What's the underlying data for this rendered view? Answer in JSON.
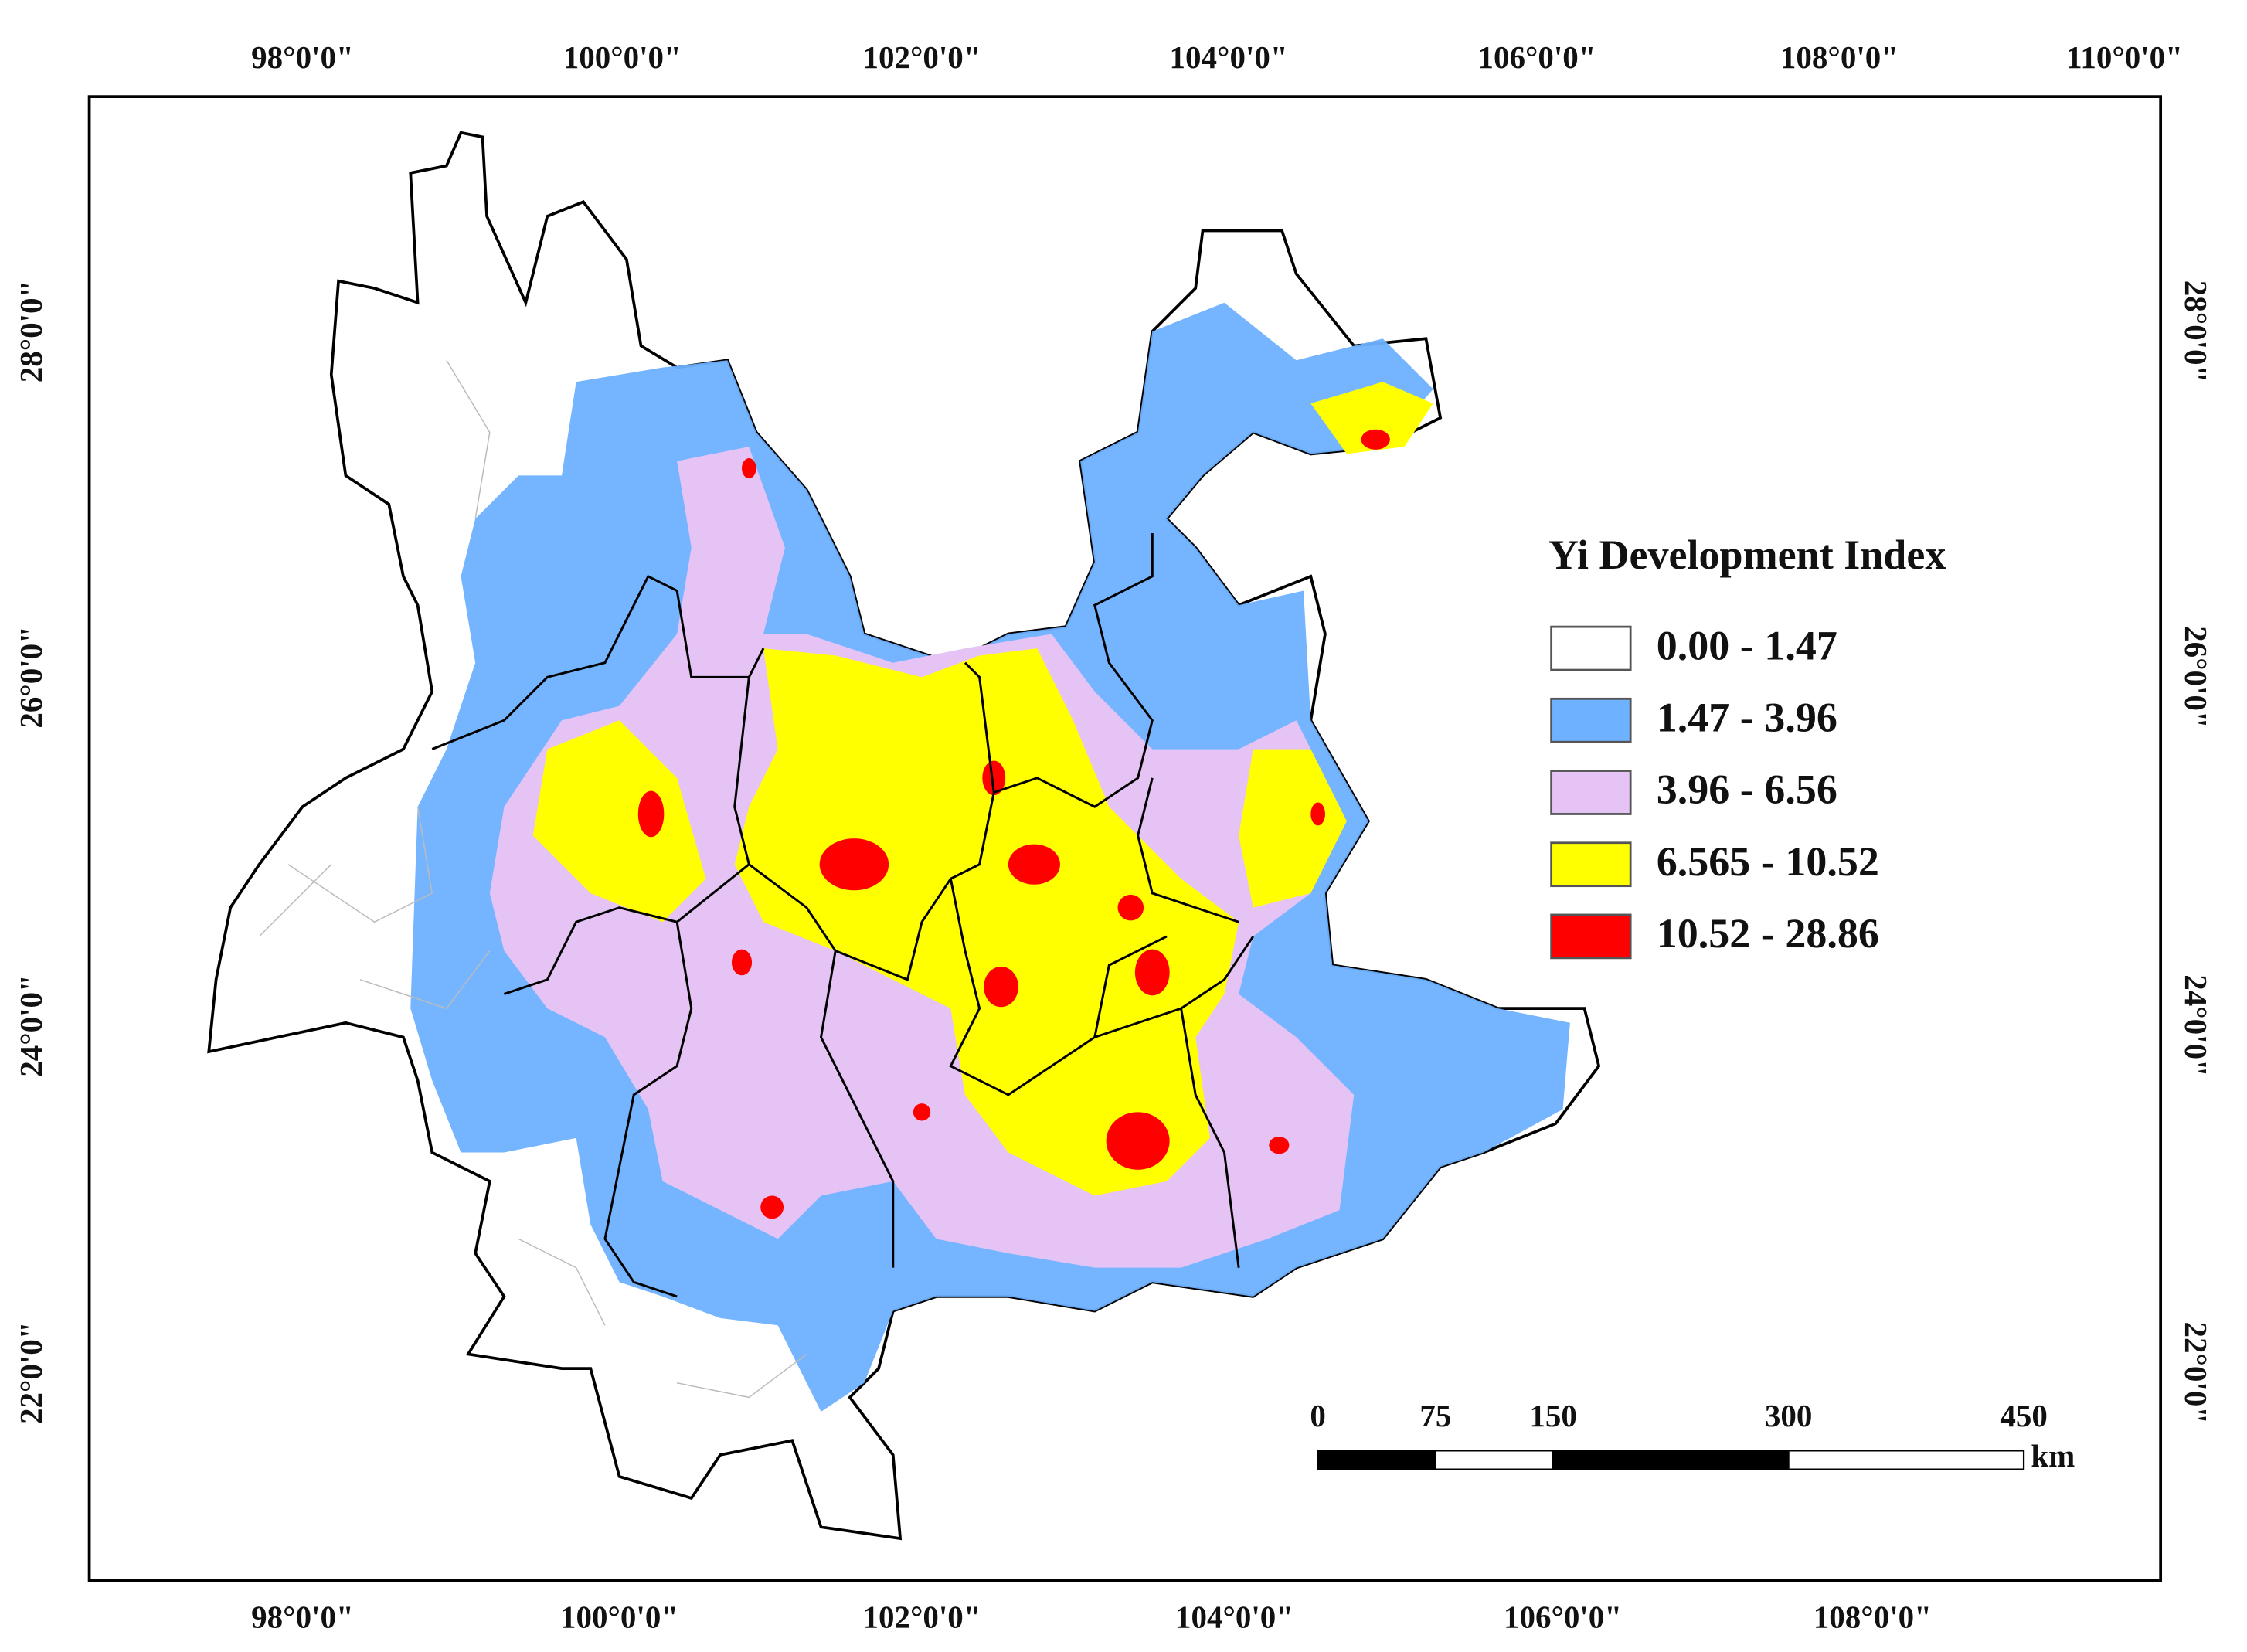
{
  "map": {
    "top_labels": [
      "98°0'0\"",
      "100°0'0\"",
      "102°0'0\"",
      "104°0'0\"",
      "106°0'0\"",
      "108°0'0\"",
      "110°0'0\""
    ],
    "bottom_labels": [
      "98°0'0\"",
      "100°0'0\"",
      "102°0'0\"",
      "104°0'0\"",
      "106°0'0\"",
      "108°0'0\""
    ],
    "left_labels": [
      "28°0'0\"",
      "26°0'0\"",
      "24°0'0\"",
      "22°0'0\""
    ],
    "right_labels": [
      "28°0'0\"",
      "26°0'0\"",
      "24°0'0\"",
      "22°0'0\""
    ]
  },
  "legend": {
    "title": "Yi Development Index",
    "items": [
      {
        "label": "0.00 - 1.47",
        "color": "#ffffff"
      },
      {
        "label": "1.47 - 3.96",
        "color": "#6eb1ff"
      },
      {
        "label": "3.96 - 6.56",
        "color": "#e6c3f5"
      },
      {
        "label": "6.565 - 10.52",
        "color": "#ffff00"
      },
      {
        "label": "10.52 - 28.86",
        "color": "#ff0000"
      }
    ]
  },
  "scale_bar": {
    "ticks": [
      0,
      75,
      150,
      300,
      450
    ],
    "unit": "km"
  }
}
